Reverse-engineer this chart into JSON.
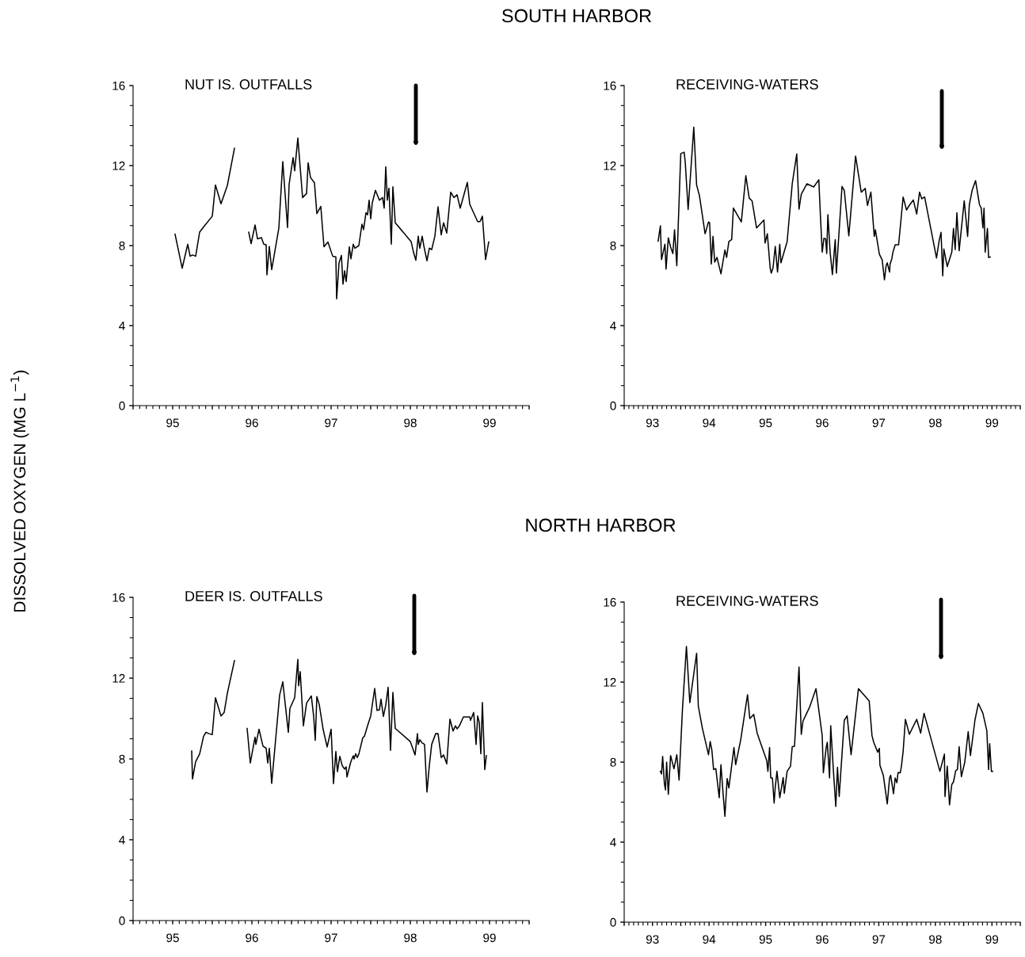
{
  "chart_data": [
    {
      "type": "line",
      "title": "SOUTH HARBOR",
      "subtitle": "NUT IS. OUTFALLS",
      "ylabel": "DISSOLVED OXYGEN (MG L$^{−1}$)",
      "xlim": [
        94.5,
        99.5
      ],
      "ylim": [
        0,
        16
      ],
      "yticks": [
        0,
        4,
        8,
        12,
        16
      ],
      "xticks": [
        {
          "value": 94.5,
          "label": null
        },
        95,
        {
          "value": 95.5,
          "label": null
        },
        96,
        {
          "value": 96.5,
          "label": null
        },
        97,
        {
          "value": 97.5,
          "label": null
        },
        98,
        {
          "value": 98.5,
          "label": null
        },
        99,
        {
          "value": 99.5,
          "label": null
        }
      ],
      "series": [
        {
          "color": "#000000",
          "x": [
            95.03,
            95.12,
            95.19,
            95.22,
            95.25,
            95.29,
            95.34,
            95.39,
            95.5,
            95.54,
            95.61,
            95.69,
            95.78,
            95.87,
            95.96,
            95.99,
            96.04,
            96.07,
            96.12,
            96.15,
            96.18,
            96.19,
            96.22,
            96.25,
            96.34,
            96.39,
            96.45,
            96.47,
            96.52,
            96.54,
            96.58,
            96.64,
            96.69,
            96.71,
            96.74,
            96.79,
            96.82,
            96.87,
            96.91,
            96.96,
            97.02,
            97.06,
            97.07,
            97.1,
            97.13,
            97.15,
            97.17,
            97.19,
            97.23,
            97.25,
            97.28,
            97.3,
            97.35,
            97.39,
            97.41,
            97.44,
            97.46,
            97.48,
            97.5,
            97.52,
            97.56,
            97.61,
            97.65,
            97.67,
            97.69,
            97.71,
            97.73,
            97.76,
            97.78,
            97.81,
            98.01,
            98.04,
            98.07,
            98.1,
            98.12,
            98.15,
            98.17,
            98.21,
            98.24,
            98.27,
            98.31,
            98.35,
            98.39,
            98.42,
            98.46,
            98.51,
            98.55,
            98.59,
            98.63,
            98.72,
            98.75,
            98.85,
            98.88,
            98.91,
            98.95,
            98.99
          ],
          "values": [
            8.57,
            6.87,
            8.07,
            7.47,
            7.53,
            7.47,
            8.67,
            8.93,
            9.47,
            11.03,
            10.09,
            11.0,
            12.87,
            null,
            8.67,
            8.1,
            9.03,
            8.34,
            8.4,
            8.07,
            8.04,
            6.54,
            7.96,
            6.8,
            8.87,
            12.2,
            8.9,
            11.07,
            12.4,
            11.74,
            13.38,
            10.4,
            10.6,
            12.14,
            11.4,
            11.14,
            9.6,
            9.96,
            7.94,
            8.18,
            7.47,
            7.44,
            5.34,
            7.14,
            7.51,
            6.07,
            6.74,
            6.2,
            7.94,
            7.34,
            8.07,
            7.87,
            8.0,
            9.07,
            8.8,
            9.64,
            9.54,
            10.27,
            9.34,
            10.14,
            10.76,
            10.27,
            10.4,
            9.87,
            11.94,
            10.27,
            10.87,
            8.07,
            10.94,
            9.14,
            8.2,
            7.67,
            7.27,
            8.47,
            7.87,
            8.47,
            8.0,
            7.24,
            7.87,
            7.8,
            8.47,
            9.94,
            8.54,
            9.14,
            8.63,
            10.67,
            10.4,
            10.54,
            9.87,
            11.16,
            10.07,
            9.2,
            9.2,
            9.47,
            7.3,
            8.18
          ]
        }
      ]
    },
    {
      "type": "line",
      "subtitle": "RECEIVING-WATERS",
      "xlim": [
        92.5,
        99.5
      ],
      "ylim": [
        0,
        16
      ],
      "yticks": [
        0,
        4,
        8,
        12,
        16
      ],
      "xticks": [
        {
          "value": 92.5,
          "label": null
        },
        93,
        {
          "value": 93.5,
          "label": null
        },
        94,
        {
          "value": 94.5,
          "label": null
        },
        95,
        {
          "value": 95.5,
          "label": null
        },
        96,
        {
          "value": 96.5,
          "label": null
        },
        97,
        {
          "value": 97.5,
          "label": null
        },
        98,
        {
          "value": 98.5,
          "label": null
        },
        99,
        {
          "value": 99.5,
          "label": null
        }
      ],
      "series": [
        {
          "color": "#000000",
          "x": [
            93.1,
            93.14,
            93.16,
            93.19,
            93.22,
            93.24,
            93.28,
            93.32,
            93.36,
            93.39,
            93.43,
            93.5,
            93.56,
            93.58,
            93.63,
            93.73,
            93.78,
            93.83,
            93.93,
            93.99,
            94.01,
            94.04,
            94.07,
            94.1,
            94.14,
            94.21,
            94.28,
            94.31,
            94.35,
            94.4,
            94.43,
            94.57,
            94.65,
            94.71,
            94.76,
            94.84,
            94.97,
            94.99,
            95.03,
            95.08,
            95.1,
            95.13,
            95.17,
            95.21,
            95.25,
            95.27,
            95.38,
            95.47,
            95.55,
            95.59,
            95.63,
            95.73,
            95.85,
            95.94,
            95.97,
            96.0,
            96.03,
            96.06,
            96.08,
            96.1,
            96.14,
            96.18,
            96.23,
            96.25,
            96.35,
            96.39,
            96.47,
            96.59,
            96.69,
            96.76,
            96.8,
            96.86,
            96.92,
            96.94,
            97.01,
            97.06,
            97.1,
            97.13,
            97.15,
            97.19,
            97.2,
            97.23,
            97.25,
            97.29,
            97.35,
            97.43,
            97.49,
            97.53,
            97.61,
            97.67,
            97.72,
            97.76,
            97.81,
            98.02,
            98.07,
            98.1,
            98.13,
            98.15,
            98.21,
            98.29,
            98.32,
            98.35,
            98.38,
            98.42,
            98.51,
            98.57,
            98.6,
            98.65,
            98.71,
            98.78,
            98.81,
            98.84,
            98.86,
            98.88,
            98.92,
            98.94,
            98.97
          ],
          "values": [
            8.22,
            8.99,
            7.3,
            7.67,
            8.07,
            6.82,
            8.39,
            7.93,
            7.6,
            8.79,
            6.99,
            12.6,
            12.67,
            12.14,
            9.8,
            13.92,
            11.03,
            10.5,
            8.59,
            9.18,
            9.14,
            7.08,
            8.46,
            7.17,
            7.41,
            6.59,
            7.78,
            7.41,
            8.2,
            8.3,
            9.88,
            9.18,
            11.49,
            10.37,
            10.24,
            8.88,
            9.28,
            8.13,
            8.59,
            6.88,
            6.62,
            6.88,
            7.96,
            6.68,
            8.07,
            7.14,
            8.2,
            11.09,
            12.58,
            9.82,
            10.57,
            11.09,
            10.93,
            11.29,
            9.38,
            7.67,
            8.37,
            8.33,
            7.6,
            9.54,
            7.67,
            6.55,
            8.3,
            6.62,
            10.96,
            10.76,
            8.49,
            12.47,
            10.67,
            10.86,
            10.01,
            10.67,
            8.46,
            8.79,
            7.57,
            7.28,
            6.29,
            7.01,
            7.14,
            6.68,
            7.08,
            7.34,
            7.67,
            8.04,
            8.04,
            10.43,
            9.78,
            9.97,
            10.28,
            9.58,
            10.67,
            10.34,
            10.43,
            7.38,
            8.3,
            8.66,
            6.49,
            7.83,
            6.95,
            7.67,
            8.86,
            7.8,
            9.64,
            7.74,
            10.24,
            8.46,
            10.04,
            10.76,
            11.25,
            10.04,
            9.88,
            8.88,
            9.87,
            7.67,
            8.86,
            7.41,
            7.43
          ]
        }
      ]
    },
    {
      "type": "line",
      "title": "NORTH HARBOR",
      "subtitle": "DEER IS. OUTFALLS",
      "xlim": [
        94.5,
        99.5
      ],
      "ylim": [
        0,
        16
      ],
      "yticks": [
        0,
        4,
        8,
        12,
        16
      ],
      "xticks": [
        {
          "value": 94.5,
          "label": null
        },
        95,
        {
          "value": 95.5,
          "label": null
        },
        96,
        {
          "value": 96.5,
          "label": null
        },
        97,
        {
          "value": 97.5,
          "label": null
        },
        98,
        {
          "value": 98.5,
          "label": null
        },
        99,
        {
          "value": 99.5,
          "label": null
        }
      ],
      "series": [
        {
          "color": "#000000",
          "x": [
            95.24,
            95.25,
            95.29,
            95.34,
            95.39,
            95.42,
            95.46,
            95.5,
            95.54,
            95.61,
            95.65,
            95.69,
            95.78,
            95.86,
            95.94,
            95.98,
            96.04,
            96.05,
            96.09,
            96.14,
            96.18,
            96.2,
            96.22,
            96.25,
            96.35,
            96.39,
            96.46,
            96.48,
            96.54,
            96.58,
            96.59,
            96.61,
            96.65,
            96.69,
            96.75,
            96.78,
            96.8,
            96.82,
            96.85,
            96.9,
            96.95,
            97.0,
            97.03,
            97.06,
            97.08,
            97.11,
            97.14,
            97.17,
            97.19,
            97.2,
            97.25,
            97.28,
            97.29,
            97.31,
            97.33,
            97.35,
            97.4,
            97.42,
            97.46,
            97.5,
            97.55,
            97.58,
            97.61,
            97.63,
            97.66,
            97.69,
            97.72,
            97.75,
            97.78,
            97.81,
            98.0,
            98.06,
            98.09,
            98.1,
            98.12,
            98.15,
            98.18,
            98.21,
            98.24,
            98.27,
            98.32,
            98.35,
            98.39,
            98.42,
            98.46,
            98.5,
            98.54,
            98.57,
            98.59,
            98.62,
            98.67,
            98.75,
            98.76,
            98.8,
            98.83,
            98.85,
            98.87,
            98.89,
            98.91,
            98.94,
            98.96
          ],
          "values": [
            8.39,
            7.01,
            7.87,
            8.24,
            9.12,
            9.32,
            9.25,
            9.21,
            11.03,
            10.13,
            10.3,
            11.25,
            12.87,
            null,
            9.51,
            7.8,
            9.08,
            8.72,
            9.47,
            8.63,
            8.53,
            7.8,
            8.53,
            6.79,
            11.16,
            11.82,
            9.32,
            10.5,
            11.03,
            12.93,
            11.62,
            12.32,
            9.64,
            10.76,
            11.12,
            10.1,
            8.92,
            11.09,
            10.7,
            9.45,
            8.59,
            9.47,
            6.78,
            8.37,
            7.37,
            8.13,
            7.67,
            7.5,
            7.61,
            7.11,
            7.87,
            8.16,
            8.0,
            8.26,
            8.07,
            8.24,
            9.05,
            9.12,
            9.64,
            10.13,
            11.49,
            10.4,
            10.43,
            10.96,
            10.1,
            10.66,
            11.55,
            8.42,
            11.29,
            9.51,
            8.86,
            8.2,
            9.25,
            8.72,
            8.95,
            8.79,
            8.72,
            6.36,
            7.67,
            8.72,
            9.25,
            9.25,
            8.07,
            8.2,
            7.76,
            9.97,
            9.38,
            9.64,
            9.49,
            9.64,
            10.08,
            10.08,
            9.91,
            10.3,
            8.72,
            10.13,
            9.82,
            8.26,
            10.79,
            7.47,
            8.16
          ]
        }
      ]
    },
    {
      "type": "line",
      "subtitle": "RECEIVING-WATERS",
      "xlim": [
        92.5,
        99.5
      ],
      "ylim": [
        0,
        16
      ],
      "yticks": [
        0,
        4,
        8,
        12,
        16
      ],
      "xticks": [
        {
          "value": 92.5,
          "label": null
        },
        93,
        {
          "value": 93.5,
          "label": null
        },
        94,
        {
          "value": 94.5,
          "label": null
        },
        95,
        {
          "value": 95.5,
          "label": null
        },
        96,
        {
          "value": 96.5,
          "label": null
        },
        97,
        {
          "value": 97.5,
          "label": null
        },
        98,
        {
          "value": 98.5,
          "label": null
        },
        99,
        {
          "value": 99.5,
          "label": null
        }
      ],
      "series": [
        {
          "color": "#000000",
          "x": [
            93.14,
            93.16,
            93.18,
            93.21,
            93.23,
            93.25,
            93.28,
            93.32,
            93.38,
            93.43,
            93.47,
            93.53,
            93.6,
            93.66,
            93.78,
            93.81,
            93.88,
            93.99,
            94.02,
            94.05,
            94.08,
            94.12,
            94.18,
            94.21,
            94.25,
            94.28,
            94.32,
            94.35,
            94.44,
            94.47,
            94.56,
            94.68,
            94.72,
            94.79,
            94.85,
            95.02,
            95.04,
            95.07,
            95.09,
            95.12,
            95.15,
            95.17,
            95.2,
            95.25,
            95.31,
            95.33,
            95.38,
            95.44,
            95.47,
            95.51,
            95.59,
            95.63,
            95.66,
            95.78,
            95.89,
            96.0,
            96.02,
            96.07,
            96.09,
            96.13,
            96.15,
            96.2,
            96.24,
            96.27,
            96.3,
            96.35,
            96.39,
            96.44,
            96.51,
            96.64,
            96.83,
            96.88,
            96.91,
            96.98,
            97.01,
            97.02,
            97.08,
            97.15,
            97.19,
            97.21,
            97.26,
            97.29,
            97.32,
            97.34,
            97.38,
            97.4,
            97.43,
            97.47,
            97.54,
            97.67,
            97.74,
            97.8,
            98.08,
            98.16,
            98.17,
            98.21,
            98.25,
            98.29,
            98.32,
            98.36,
            98.39,
            98.42,
            98.46,
            98.52,
            98.58,
            98.62,
            98.7,
            98.76,
            98.84,
            98.91,
            98.94,
            98.96,
            98.99,
            99.01
          ],
          "values": [
            7.54,
            7.41,
            8.29,
            6.94,
            6.61,
            8.0,
            6.39,
            8.33,
            7.67,
            8.37,
            7.1,
            10.64,
            13.78,
            10.97,
            13.44,
            10.8,
            9.72,
            8.37,
            9.03,
            8.59,
            7.63,
            7.67,
            6.22,
            7.87,
            6.35,
            5.29,
            7.18,
            6.71,
            8.73,
            7.87,
            9.12,
            11.37,
            10.18,
            10.38,
            9.45,
            8.07,
            7.54,
            8.73,
            7.21,
            7.21,
            5.95,
            6.75,
            7.54,
            6.22,
            7.23,
            6.44,
            7.54,
            7.8,
            8.77,
            8.79,
            12.75,
            9.39,
            10.05,
            10.77,
            11.67,
            9.32,
            7.47,
            8.73,
            8.99,
            7.21,
            9.82,
            7.47,
            5.78,
            7.74,
            6.28,
            8.4,
            10.09,
            10.31,
            8.37,
            11.67,
            11.06,
            9.32,
            8.99,
            8.5,
            8.69,
            7.84,
            7.34,
            5.91,
            7.21,
            7.34,
            6.42,
            7.21,
            6.97,
            7.47,
            7.47,
            7.8,
            8.53,
            10.14,
            9.39,
            10.14,
            9.45,
            10.44,
            7.54,
            8.4,
            6.28,
            7.8,
            5.86,
            6.88,
            7.01,
            7.58,
            7.63,
            8.77,
            7.27,
            8.0,
            9.52,
            8.33,
            10.11,
            10.93,
            10.44,
            9.56,
            7.63,
            8.92,
            7.54,
            7.54
          ]
        }
      ]
    }
  ]
}
